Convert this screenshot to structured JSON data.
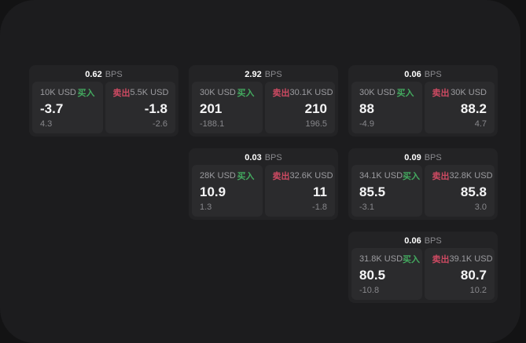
{
  "colors": {
    "outer_background": "#131314",
    "panel_background": "#1c1c1e",
    "card_background": "#232325",
    "pane_background": "#2b2b2d",
    "buy_green": "#43a95f",
    "sell_red": "#cd4a62",
    "value_white": "#f5f5f6",
    "muted_gray": "#8a8a8e"
  },
  "cards": [
    {
      "grid": {
        "col": 0,
        "row": 0
      },
      "bps_value": "0.62",
      "bps_unit": "BPS",
      "buy": {
        "amount": "10K USD",
        "side_label": "买入",
        "price": "-3.7",
        "delta": "4.3"
      },
      "sell": {
        "side_label": "卖出",
        "amount": "5.5K USD",
        "price": "-1.8",
        "delta": "-2.6"
      }
    },
    {
      "grid": {
        "col": 1,
        "row": 0
      },
      "bps_value": "2.92",
      "bps_unit": "BPS",
      "buy": {
        "amount": "30K USD",
        "side_label": "买入",
        "price": "201",
        "delta": "-188.1"
      },
      "sell": {
        "side_label": "卖出",
        "amount": "30.1K USD",
        "price": "210",
        "delta": "196.5"
      }
    },
    {
      "grid": {
        "col": 2,
        "row": 0
      },
      "bps_value": "0.06",
      "bps_unit": "BPS",
      "buy": {
        "amount": "30K USD",
        "side_label": "买入",
        "price": "88",
        "delta": "-4.9"
      },
      "sell": {
        "side_label": "卖出",
        "amount": "30K USD",
        "price": "88.2",
        "delta": "4.7"
      }
    },
    {
      "grid": {
        "col": 1,
        "row": 1
      },
      "bps_value": "0.03",
      "bps_unit": "BPS",
      "buy": {
        "amount": "28K USD",
        "side_label": "买入",
        "price": "10.9",
        "delta": "1.3"
      },
      "sell": {
        "side_label": "卖出",
        "amount": "32.6K USD",
        "price": "11",
        "delta": "-1.8"
      }
    },
    {
      "grid": {
        "col": 2,
        "row": 1
      },
      "bps_value": "0.09",
      "bps_unit": "BPS",
      "buy": {
        "amount": "34.1K USD",
        "side_label": "买入",
        "price": "85.5",
        "delta": "-3.1"
      },
      "sell": {
        "side_label": "卖出",
        "amount": "32.8K USD",
        "price": "85.8",
        "delta": "3.0"
      }
    },
    {
      "grid": {
        "col": 2,
        "row": 2
      },
      "bps_value": "0.06",
      "bps_unit": "BPS",
      "buy": {
        "amount": "31.8K USD",
        "side_label": "买入",
        "price": "80.5",
        "delta": "-10.8"
      },
      "sell": {
        "side_label": "卖出",
        "amount": "39.1K USD",
        "price": "80.7",
        "delta": "10.2"
      }
    }
  ]
}
